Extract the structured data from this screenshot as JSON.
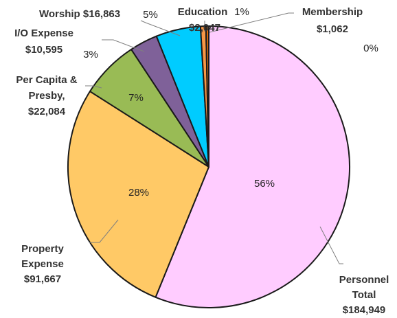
{
  "chart_data": {
    "type": "pie",
    "title": "",
    "start_angle_deg": 0,
    "direction": "clockwise",
    "slices": [
      {
        "name": "Personnel Total",
        "value": 184949,
        "value_label": "$184,949",
        "percent_label": "56%",
        "color": "#FFCCFF"
      },
      {
        "name": "Property Expense",
        "value": 91667,
        "value_label": "$91,667",
        "percent_label": "28%",
        "color": "#FFC966"
      },
      {
        "name": "Per Capita & Presby,",
        "value": 22084,
        "value_label": "$22,084",
        "percent_label": "7%",
        "color": "#99BB55"
      },
      {
        "name": "I/O Expense",
        "value": 10595,
        "value_label": "$10,595",
        "percent_label": "3%",
        "color": "#7F6199"
      },
      {
        "name": "Worship",
        "value": 16863,
        "value_label": "$16,863",
        "percent_label": "5%",
        "color": "#00CCFF"
      },
      {
        "name": "Education",
        "value": 2047,
        "value_label": "$2,047",
        "percent_label": "1%",
        "color": "#F79646"
      },
      {
        "name": "Membership",
        "value": 1062,
        "value_label": "$1,062",
        "percent_label": "0%",
        "color": "#E46C0A"
      }
    ]
  },
  "labels": {
    "personnel": {
      "line1": "Personnel",
      "line2": "Total",
      "line3": "$184,949"
    },
    "property": {
      "line1": "Property",
      "line2": "Expense",
      "line3": "$91,667"
    },
    "percapita": {
      "line1": "Per Capita &",
      "line2": "Presby,",
      "line3": "$22,084"
    },
    "io": {
      "line1": "I/O Expense",
      "line2": "$10,595"
    },
    "worship": {
      "line1": "Worship $16,863"
    },
    "education": {
      "line1": "Education",
      "line2": "$2,047"
    },
    "membership": {
      "line1": "Membership",
      "line2": "$1,062"
    }
  }
}
